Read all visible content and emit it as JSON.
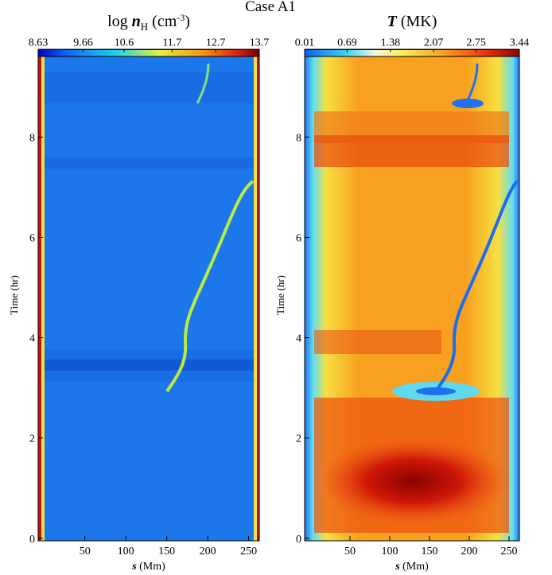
{
  "suptitle": "Case A1",
  "chart_data": [
    {
      "type": "heatmap",
      "title": [
        "log ",
        "n",
        "H",
        " (cm",
        "-3",
        ")"
      ],
      "x_label": [
        "s",
        " (Mm)"
      ],
      "y_label": "Time (hr)",
      "xlim": [
        -7,
        263
      ],
      "ylim": [
        -0.05,
        9.75
      ],
      "xticks": [
        50,
        100,
        150,
        200,
        250
      ],
      "yticks": [
        0,
        2,
        4,
        6,
        8
      ],
      "colorbar": {
        "lim": [
          8.63,
          13.7
        ],
        "ticks": [
          8.63,
          9.66,
          10.6,
          11.7,
          12.7,
          13.7
        ]
      }
    },
    {
      "type": "heatmap",
      "title": [
        "T",
        " (MK)"
      ],
      "x_label": [
        "s",
        " (Mm)"
      ],
      "y_label": "Time (hr)",
      "xlim": [
        -7,
        263
      ],
      "ylim": [
        -0.05,
        9.75
      ],
      "xticks": [
        50,
        100,
        150,
        200,
        250
      ],
      "yticks": [
        0,
        2,
        4,
        6,
        8
      ],
      "colorbar": {
        "lim": [
          0.01,
          3.44
        ],
        "ticks": [
          0.01,
          0.69,
          1.38,
          2.07,
          2.75,
          3.44
        ]
      }
    }
  ]
}
